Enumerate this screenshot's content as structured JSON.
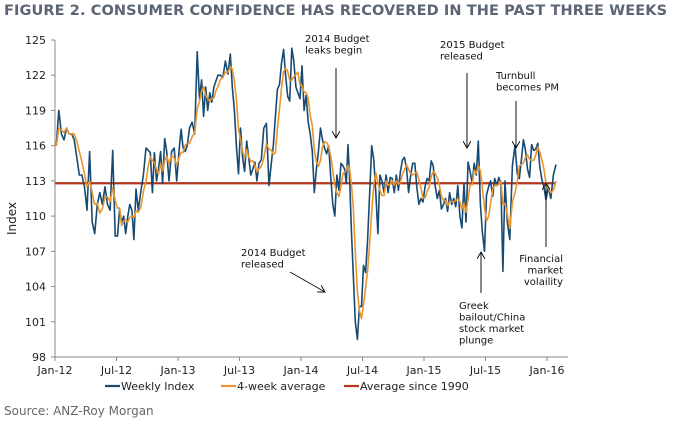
{
  "title": "FIGURE 2. CONSUMER CONFIDENCE HAS RECOVERED IN THE PAST THREE WEEKS",
  "source": "Source: ANZ-Roy Morgan",
  "chart_data": {
    "type": "line",
    "title": "FIGURE 2. CONSUMER CONFIDENCE HAS RECOVERED IN THE PAST THREE WEEKS",
    "ylabel": "Index",
    "xlabel": "",
    "ylim": [
      98,
      125
    ],
    "yticks": [
      "125",
      "122",
      "119",
      "116",
      "113",
      "110",
      "107",
      "104",
      "101",
      "98"
    ],
    "xticks": [
      "Jan-12",
      "Jul-12",
      "Jan-13",
      "Jul-13",
      "Jan-14",
      "Jul-14",
      "Jan-15",
      "Jul-15",
      "Jan-16"
    ],
    "xrange": [
      "2012-01",
      "2016-02"
    ],
    "grid": false,
    "legend_position": "bottom",
    "colors": {
      "weekly": "#174a72",
      "avg4": "#e8952e",
      "avg1990": "#b5361e"
    },
    "legend": [
      "Weekly Index",
      "4-week average",
      "Average since 1990"
    ],
    "reference_line": {
      "name": "Average since 1990",
      "value": 112.8
    },
    "moving_average_window": 4,
    "weekly_index": [
      {
        "month": "2012-01",
        "values": [
          116,
          119,
          117,
          116.5
        ]
      },
      {
        "month": "2012-02",
        "values": [
          117.5,
          117,
          117,
          116.5
        ]
      },
      {
        "month": "2012-03",
        "values": [
          115,
          113.5,
          113.5,
          112.5
        ]
      },
      {
        "month": "2012-04",
        "values": [
          110.5,
          115.5,
          109.5,
          108.5
        ]
      },
      {
        "month": "2012-05",
        "values": [
          111,
          112,
          111,
          112.5
        ]
      },
      {
        "month": "2012-06",
        "values": [
          111,
          110.5,
          115.6,
          108.3
        ]
      },
      {
        "month": "2012-07",
        "values": [
          108.3,
          110.6,
          109.5,
          110,
          108.5
        ]
      },
      {
        "month": "2012-08",
        "values": [
          110,
          111,
          110.5,
          108,
          112.3
        ]
      },
      {
        "month": "2012-09",
        "values": [
          110.5,
          112.1,
          113.5,
          115.8
        ]
      },
      {
        "month": "2012-10",
        "values": [
          115.6,
          115.4,
          112,
          115.4,
          113
        ]
      },
      {
        "month": "2012-11",
        "values": [
          114,
          115.5,
          112.8,
          116.6,
          115.5
        ]
      },
      {
        "month": "2012-12",
        "values": [
          113,
          115.5,
          115.8,
          113
        ]
      },
      {
        "month": "2013-01",
        "values": [
          115.5,
          117.4,
          115.8,
          115.5,
          116
        ]
      },
      {
        "month": "2013-02",
        "values": [
          117.5,
          118,
          117,
          124
        ]
      },
      {
        "month": "2013-03",
        "values": [
          120,
          121.6,
          118.5,
          121,
          119
        ]
      },
      {
        "month": "2013-04",
        "values": [
          120.5,
          119.7,
          121,
          121.5,
          122
        ]
      },
      {
        "month": "2013-05",
        "values": [
          122,
          121.8,
          123.2,
          122.1
        ]
      },
      {
        "month": "2013-06",
        "values": [
          123.8,
          121,
          119,
          116,
          113.6
        ]
      },
      {
        "month": "2013-07",
        "values": [
          117.5,
          115,
          113.8,
          116.4,
          115
        ]
      },
      {
        "month": "2013-08",
        "values": [
          113.5,
          114,
          114.6,
          113,
          114.5
        ]
      },
      {
        "month": "2013-09",
        "values": [
          114.8,
          117.5,
          117.9,
          112.6
        ]
      },
      {
        "month": "2013-10",
        "values": [
          114.5,
          116,
          118.5,
          120.8,
          121.2
        ]
      },
      {
        "month": "2013-11",
        "values": [
          123,
          124.2,
          122,
          120.2,
          119.8
        ]
      },
      {
        "month": "2013-12",
        "values": [
          124.3,
          123.2,
          121,
          120.5,
          120
        ]
      },
      {
        "month": "2014-01",
        "values": [
          122.8,
          119,
          120.3,
          118,
          117
        ]
      },
      {
        "month": "2014-02",
        "values": [
          115.5,
          112,
          114,
          115.5,
          117.5
        ]
      },
      {
        "month": "2014-03",
        "values": [
          116.5,
          115.8,
          115.3,
          116,
          113.4
        ]
      },
      {
        "month": "2014-04",
        "values": [
          111,
          110,
          113.5,
          112.2,
          114.5
        ]
      },
      {
        "month": "2014-05",
        "values": [
          114.3,
          114,
          112.8,
          116.1,
          113,
          108.8
        ]
      },
      {
        "month": "2014-06",
        "values": [
          105,
          101,
          99.5,
          102.3,
          102.3
        ]
      },
      {
        "month": "2014-07",
        "values": [
          105.8,
          105.2,
          108,
          112,
          116
        ]
      },
      {
        "month": "2014-08",
        "values": [
          114.8,
          112,
          108.5,
          113.5,
          113
        ]
      },
      {
        "month": "2014-09",
        "values": [
          112,
          113.5,
          112,
          113.3,
          113.2
        ]
      },
      {
        "month": "2014-10",
        "values": [
          112,
          113.5,
          112.2,
          113.8,
          114.8
        ]
      },
      {
        "month": "2014-11",
        "values": [
          115,
          114,
          112,
          113.5,
          114.5
        ]
      },
      {
        "month": "2014-12",
        "values": [
          114.5,
          112.5,
          111,
          111.5,
          111.2
        ]
      },
      {
        "month": "2015-01",
        "values": [
          112.5,
          113.2,
          113,
          114.7,
          114.3
        ]
      },
      {
        "month": "2015-02",
        "values": [
          112.5,
          111.5,
          112.2,
          110.6,
          111
        ]
      },
      {
        "month": "2015-03",
        "values": [
          111.5,
          110.4,
          112,
          111,
          111.5
        ]
      },
      {
        "month": "2015-04",
        "values": [
          110.8,
          112.6,
          110,
          109,
          112.8
        ]
      },
      {
        "month": "2015-05",
        "values": [
          109.5,
          114.6,
          113.8,
          112.8,
          114.5
        ]
      },
      {
        "month": "2015-06",
        "values": [
          113.5,
          116.4,
          111,
          108.6,
          107
        ]
      },
      {
        "month": "2015-07",
        "values": [
          111.8,
          112.5,
          113,
          111.7,
          113.2
        ]
      },
      {
        "month": "2015-08",
        "values": [
          112.6,
          113.3,
          112.8,
          105.3,
          113
        ]
      },
      {
        "month": "2015-09",
        "values": [
          109.5,
          108,
          114.3,
          116
        ]
      },
      {
        "month": "2015-10",
        "values": [
          113.6,
          113.2,
          114.8,
          116.5,
          115.6
        ]
      },
      {
        "month": "2015-11",
        "values": [
          114,
          113.3,
          116.1,
          115.6,
          115.7
        ]
      },
      {
        "month": "2015-12",
        "values": [
          116.2,
          114.2,
          113.1,
          112.5,
          111.4
        ]
      },
      {
        "month": "2016-01",
        "values": [
          112.5,
          111.5,
          113.5,
          114.4
        ]
      }
    ],
    "annotations": [
      {
        "lines": [
          "2014 Budget",
          "leaks begin"
        ]
      },
      {
        "lines": [
          "2015 Budget",
          "released"
        ]
      },
      {
        "lines": [
          "Turnbull",
          "becomes PM"
        ]
      },
      {
        "lines": [
          "2014 Budget",
          "released"
        ]
      },
      {
        "lines": [
          "Greek",
          "bailout/China",
          "stock market",
          "plunge"
        ]
      },
      {
        "lines": [
          "Financial",
          "market",
          "volaility"
        ]
      }
    ]
  }
}
